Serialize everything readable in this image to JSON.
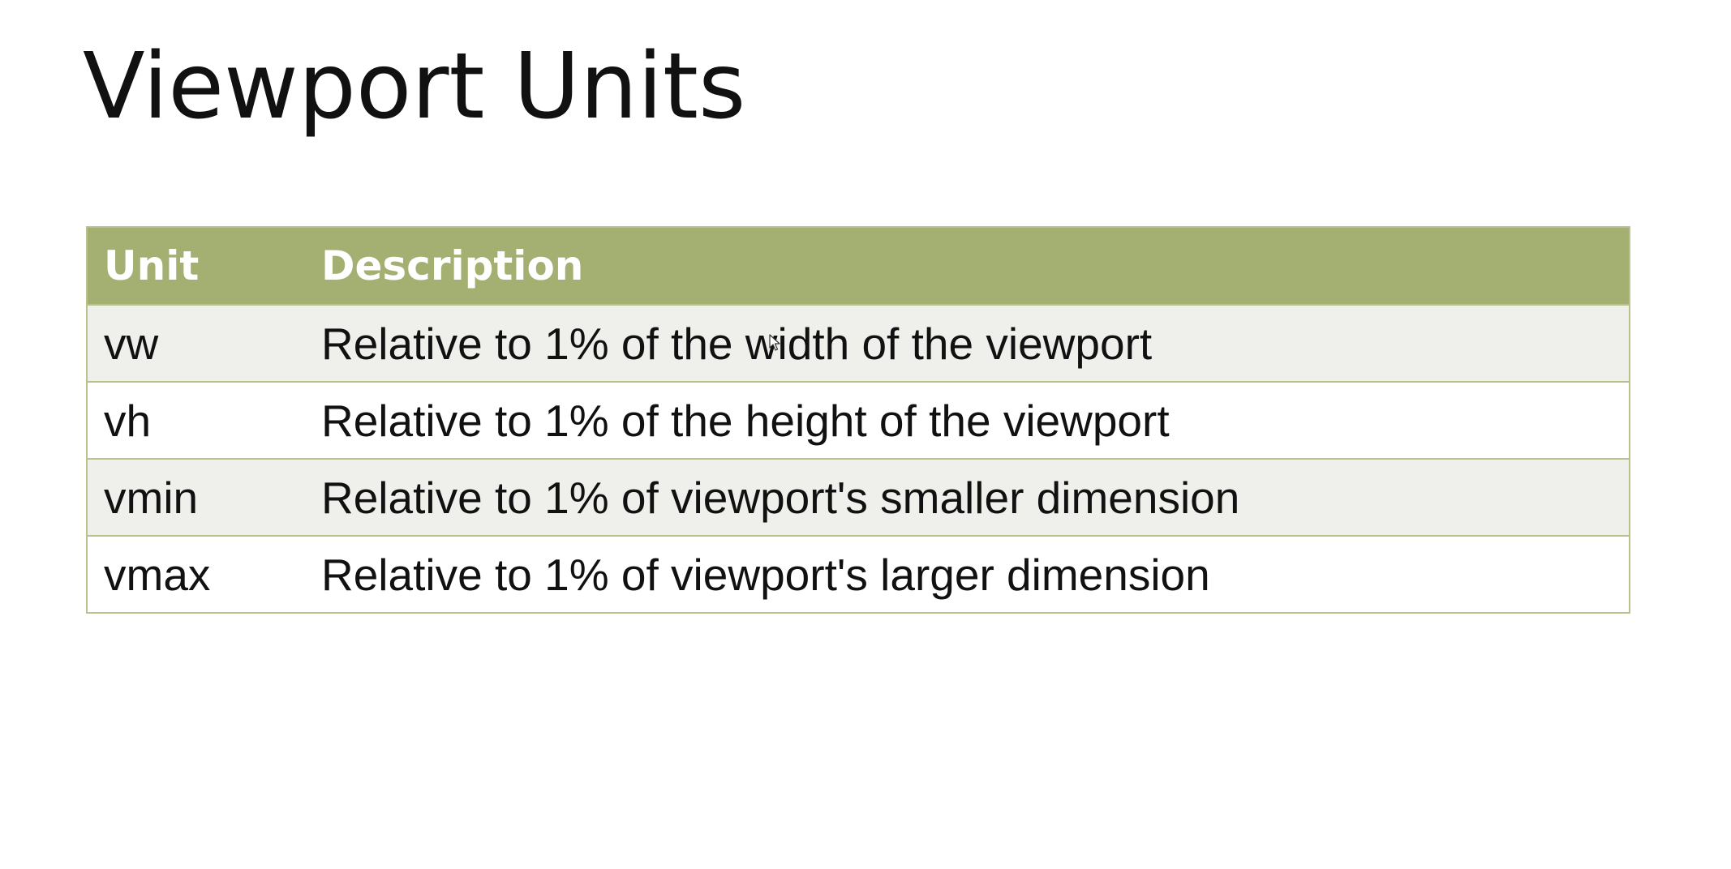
{
  "slide": {
    "title": "Viewport Units"
  },
  "table": {
    "headers": {
      "unit": "Unit",
      "description": "Description"
    },
    "rows": [
      {
        "unit": "vw",
        "description": "Relative to 1% of the width of the viewport"
      },
      {
        "unit": "vh",
        "description": "Relative to 1% of the height of the viewport"
      },
      {
        "unit": "vmin",
        "description": "Relative to 1% of viewport's smaller dimension"
      },
      {
        "unit": "vmax",
        "description": "Relative to 1% of viewport's larger dimension"
      }
    ]
  },
  "colors": {
    "header_background": "#a4b072",
    "header_text": "#ffffff",
    "row_alt_background": "#efefeb",
    "border": "#b8c28e",
    "text": "#111111"
  },
  "icons": {
    "cursor": "mouse-pointer-icon"
  }
}
